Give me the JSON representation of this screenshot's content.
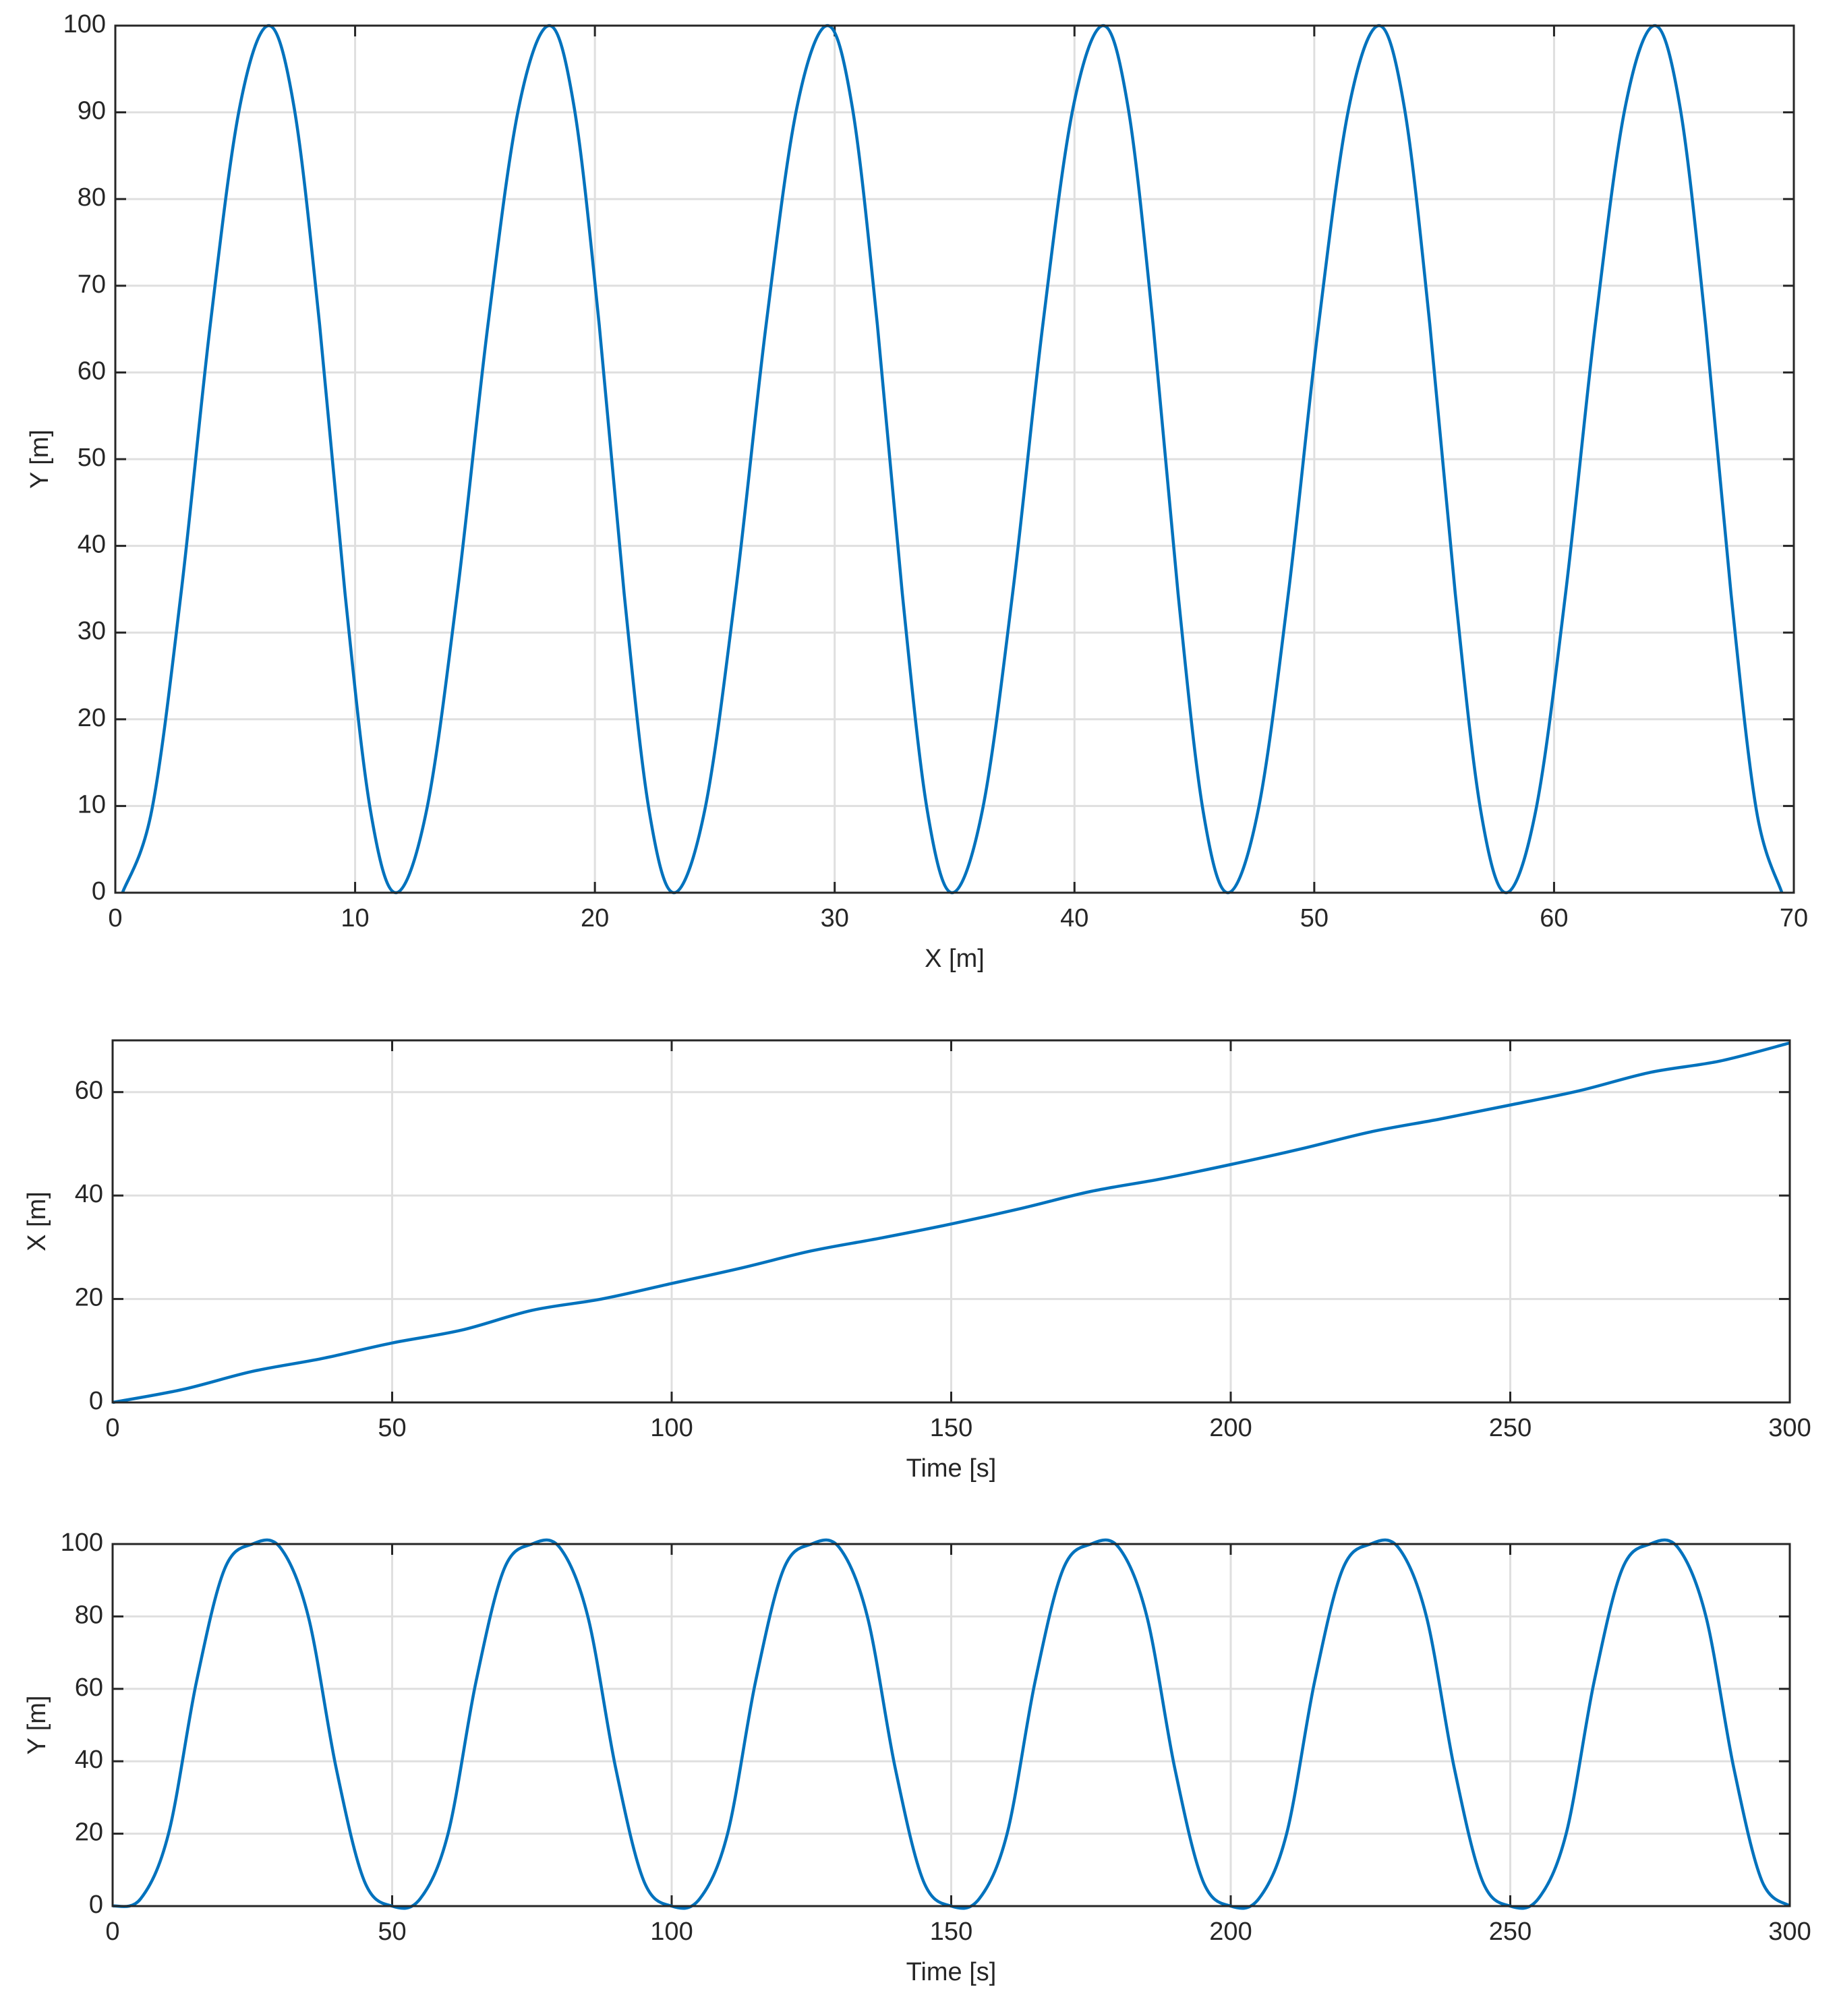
{
  "chart_data": [
    {
      "type": "line",
      "xlabel": "X [m]",
      "ylabel": "Y [m]",
      "color": "#0072bd",
      "grid": true,
      "xlim": [
        0,
        70
      ],
      "ylim": [
        0,
        100
      ],
      "xticks": [
        0,
        10,
        20,
        30,
        40,
        50,
        60,
        70
      ],
      "yticks": [
        0,
        10,
        20,
        30,
        40,
        50,
        60,
        70,
        80,
        90,
        100
      ],
      "x": [
        0.3,
        1.52,
        2.74,
        3.96,
        5.18,
        6.4,
        7.46,
        8.52,
        9.58,
        10.64,
        11.7,
        12.98,
        14.26,
        15.54,
        16.82,
        18.1,
        19.14,
        20.18,
        21.22,
        22.26,
        23.3,
        24.58,
        25.86,
        27.14,
        28.42,
        29.7,
        30.74,
        31.78,
        32.82,
        33.86,
        34.9,
        36.16,
        37.42,
        38.68,
        39.94,
        41.2,
        42.24,
        43.28,
        44.32,
        45.36,
        46.4,
        47.66,
        48.92,
        50.18,
        51.44,
        52.7,
        53.76,
        54.82,
        55.88,
        56.94,
        58.0,
        59.24,
        60.48,
        61.72,
        62.96,
        64.2,
        65.26,
        66.32,
        67.38,
        68.44,
        69.5
      ],
      "values": [
        0,
        9.5,
        34.5,
        65.5,
        90.5,
        100,
        90.5,
        65.5,
        34.5,
        9.5,
        0,
        9.5,
        34.5,
        65.5,
        90.5,
        100,
        90.5,
        65.5,
        34.5,
        9.5,
        0,
        9.5,
        34.5,
        65.5,
        90.5,
        100,
        90.5,
        65.5,
        34.5,
        9.5,
        0,
        9.5,
        34.5,
        65.5,
        90.5,
        100,
        90.5,
        65.5,
        34.5,
        9.5,
        0,
        9.5,
        34.5,
        65.5,
        90.5,
        100,
        90.5,
        65.5,
        34.5,
        9.5,
        0,
        9.5,
        34.5,
        65.5,
        90.5,
        100,
        90.5,
        65.5,
        34.5,
        9.5,
        0
      ]
    },
    {
      "type": "line",
      "xlabel": "Time [s]",
      "ylabel": "X [m]",
      "color": "#0072bd",
      "grid": true,
      "xlim": [
        0,
        300
      ],
      "ylim": [
        0,
        70
      ],
      "xticks": [
        0,
        50,
        100,
        150,
        200,
        250,
        300
      ],
      "yticks": [
        0,
        20,
        40,
        60
      ],
      "x": [
        0,
        12.5,
        25,
        37.5,
        50,
        62.5,
        75,
        87.5,
        100,
        112.5,
        125,
        137.5,
        150,
        162.5,
        175,
        187.5,
        200,
        212.5,
        225,
        237.5,
        250,
        262.5,
        275,
        287.5,
        300
      ],
      "values": [
        0,
        2.5,
        6,
        8.5,
        11.5,
        14,
        17.8,
        20,
        23,
        26,
        29.3,
        31.8,
        34.5,
        37.5,
        40.8,
        43.2,
        46,
        49,
        52.3,
        54.8,
        57.5,
        60.3,
        63.8,
        66,
        69.5
      ]
    },
    {
      "type": "line",
      "xlabel": "Time [s]",
      "ylabel": "Y [m]",
      "color": "#0072bd",
      "grid": true,
      "xlim": [
        0,
        300
      ],
      "ylim": [
        0,
        100
      ],
      "xticks": [
        0,
        50,
        100,
        150,
        200,
        250,
        300
      ],
      "yticks": [
        0,
        20,
        40,
        60,
        80,
        100
      ],
      "x": [
        0,
        5,
        10,
        15,
        20,
        25,
        30,
        35,
        40,
        45,
        50,
        55,
        60,
        65,
        70,
        75,
        80,
        85,
        90,
        95,
        100,
        105,
        110,
        115,
        120,
        125,
        130,
        135,
        140,
        145,
        150,
        155,
        160,
        165,
        170,
        175,
        180,
        185,
        190,
        195,
        200,
        205,
        210,
        215,
        220,
        225,
        230,
        235,
        240,
        245,
        250,
        255,
        260,
        265,
        270,
        275,
        280,
        285,
        290,
        295,
        300
      ],
      "values": [
        0,
        2,
        20,
        62,
        93,
        100,
        99,
        80,
        38,
        7,
        0,
        2,
        20,
        62,
        93,
        100,
        99,
        80,
        38,
        7,
        0,
        2,
        20,
        62,
        93,
        100,
        99,
        80,
        38,
        7,
        0,
        2,
        20,
        62,
        93,
        100,
        99,
        80,
        38,
        7,
        0,
        2,
        20,
        62,
        93,
        100,
        99,
        80,
        38,
        7,
        0,
        2,
        20,
        62,
        93,
        100,
        99,
        80,
        38,
        7,
        0
      ]
    }
  ]
}
